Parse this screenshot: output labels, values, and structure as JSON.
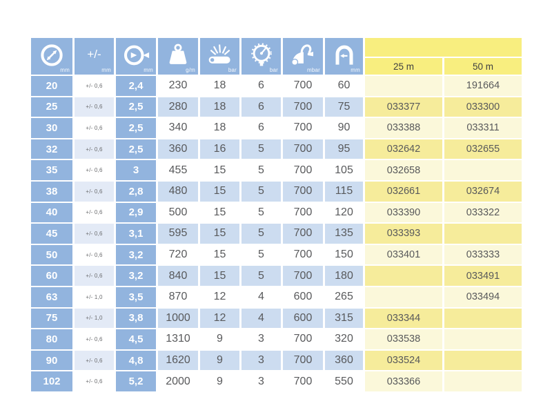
{
  "colors": {
    "header_blue": "#92b4de",
    "row_blue_light": "#ccdcf0",
    "row_blue_lighter": "#e3eaf6",
    "yellow_header": "#f8ee7f",
    "yellow_even": "#f6ec9b",
    "yellow_odd": "#fbf8da",
    "text_dark": "#58595b"
  },
  "table": {
    "spec_headers": [
      {
        "icon": "inner-diameter-icon",
        "unit": "mm"
      },
      {
        "icon": "tolerance-icon",
        "symbol": "+/-",
        "unit": "mm"
      },
      {
        "icon": "outer-diameter-icon",
        "unit": "mm"
      },
      {
        "icon": "weight-icon",
        "unit": "g/m"
      },
      {
        "icon": "burst-pressure-icon",
        "unit": "bar"
      },
      {
        "icon": "pressure-gauge-icon",
        "unit": "bar"
      },
      {
        "icon": "vacuum-icon",
        "unit": "mbar"
      },
      {
        "icon": "bend-radius-icon",
        "unit": "mm"
      }
    ],
    "length_columns": [
      {
        "label": "25 m"
      },
      {
        "label": "50 m"
      }
    ],
    "rows": [
      {
        "diameter": "20",
        "tolerance": "+/- 0,6",
        "wall_thickness": "2,4",
        "weight": "230",
        "working_pressure": "18",
        "vacuum_bar": "6",
        "vacuum_mbar": "700",
        "bend_radius": "60",
        "code_25m": "",
        "code_50m": "191664"
      },
      {
        "diameter": "25",
        "tolerance": "+/- 0,6",
        "wall_thickness": "2,5",
        "weight": "280",
        "working_pressure": "18",
        "vacuum_bar": "6",
        "vacuum_mbar": "700",
        "bend_radius": "75",
        "code_25m": "033377",
        "code_50m": "033300"
      },
      {
        "diameter": "30",
        "tolerance": "+/- 0,6",
        "wall_thickness": "2,5",
        "weight": "340",
        "working_pressure": "18",
        "vacuum_bar": "6",
        "vacuum_mbar": "700",
        "bend_radius": "90",
        "code_25m": "033388",
        "code_50m": "033311"
      },
      {
        "diameter": "32",
        "tolerance": "+/- 0,6",
        "wall_thickness": "2,5",
        "weight": "360",
        "working_pressure": "16",
        "vacuum_bar": "5",
        "vacuum_mbar": "700",
        "bend_radius": "95",
        "code_25m": "032642",
        "code_50m": "032655"
      },
      {
        "diameter": "35",
        "tolerance": "+/- 0,6",
        "wall_thickness": "3",
        "weight": "455",
        "working_pressure": "15",
        "vacuum_bar": "5",
        "vacuum_mbar": "700",
        "bend_radius": "105",
        "code_25m": "032658",
        "code_50m": ""
      },
      {
        "diameter": "38",
        "tolerance": "+/- 0,6",
        "wall_thickness": "2,8",
        "weight": "480",
        "working_pressure": "15",
        "vacuum_bar": "5",
        "vacuum_mbar": "700",
        "bend_radius": "115",
        "code_25m": "032661",
        "code_50m": "032674"
      },
      {
        "diameter": "40",
        "tolerance": "+/- 0,6",
        "wall_thickness": "2,9",
        "weight": "500",
        "working_pressure": "15",
        "vacuum_bar": "5",
        "vacuum_mbar": "700",
        "bend_radius": "120",
        "code_25m": "033390",
        "code_50m": "033322"
      },
      {
        "diameter": "45",
        "tolerance": "+/- 0,6",
        "wall_thickness": "3,1",
        "weight": "595",
        "working_pressure": "15",
        "vacuum_bar": "5",
        "vacuum_mbar": "700",
        "bend_radius": "135",
        "code_25m": "033393",
        "code_50m": ""
      },
      {
        "diameter": "50",
        "tolerance": "+/- 0,6",
        "wall_thickness": "3,2",
        "weight": "720",
        "working_pressure": "15",
        "vacuum_bar": "5",
        "vacuum_mbar": "700",
        "bend_radius": "150",
        "code_25m": "033401",
        "code_50m": "033333"
      },
      {
        "diameter": "60",
        "tolerance": "+/- 0,6",
        "wall_thickness": "3,2",
        "weight": "840",
        "working_pressure": "15",
        "vacuum_bar": "5",
        "vacuum_mbar": "700",
        "bend_radius": "180",
        "code_25m": "",
        "code_50m": "033491"
      },
      {
        "diameter": "63",
        "tolerance": "+/- 1,0",
        "wall_thickness": "3,5",
        "weight": "870",
        "working_pressure": "12",
        "vacuum_bar": "4",
        "vacuum_mbar": "600",
        "bend_radius": "265",
        "code_25m": "",
        "code_50m": "033494"
      },
      {
        "diameter": "75",
        "tolerance": "+/- 1,0",
        "wall_thickness": "3,8",
        "weight": "1000",
        "working_pressure": "12",
        "vacuum_bar": "4",
        "vacuum_mbar": "600",
        "bend_radius": "315",
        "code_25m": "033344",
        "code_50m": ""
      },
      {
        "diameter": "80",
        "tolerance": "+/- 0,6",
        "wall_thickness": "4,5",
        "weight": "1310",
        "working_pressure": "9",
        "vacuum_bar": "3",
        "vacuum_mbar": "700",
        "bend_radius": "320",
        "code_25m": "033538",
        "code_50m": ""
      },
      {
        "diameter": "90",
        "tolerance": "+/- 0,6",
        "wall_thickness": "4,8",
        "weight": "1620",
        "working_pressure": "9",
        "vacuum_bar": "3",
        "vacuum_mbar": "700",
        "bend_radius": "360",
        "code_25m": "033524",
        "code_50m": ""
      },
      {
        "diameter": "102",
        "tolerance": "+/- 0,6",
        "wall_thickness": "5,2",
        "weight": "2000",
        "working_pressure": "9",
        "vacuum_bar": "3",
        "vacuum_mbar": "700",
        "bend_radius": "550",
        "code_25m": "033366",
        "code_50m": ""
      }
    ]
  }
}
